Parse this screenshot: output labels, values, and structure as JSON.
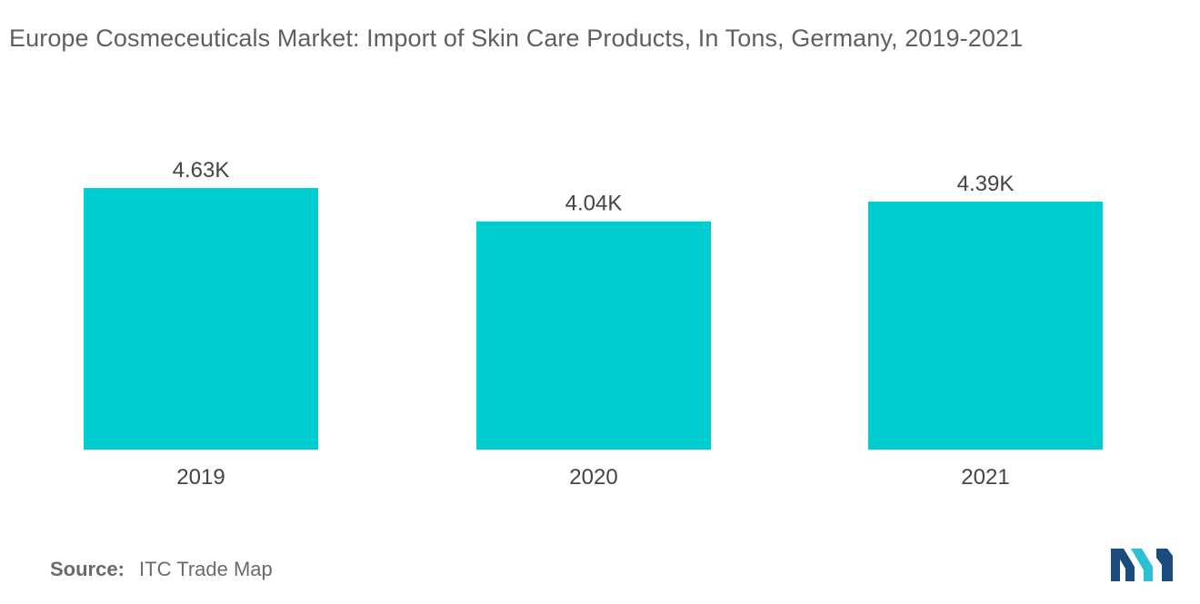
{
  "title": "Europe Cosmeceuticals Market: Import of Skin Care Products, In Tons, Germany, 2019-2021",
  "source_label": "Source:",
  "source_text": "ITC Trade Map",
  "colors": {
    "bar": "#00cdd0",
    "title_text": "#5f5f5f",
    "label_text": "#444444",
    "logo_dark": "#1b4b7c",
    "logo_light": "#2fbfd2"
  },
  "logo_icon": "mordor-intelligence-logo-icon",
  "chart_data": {
    "type": "bar",
    "categories": [
      "2019",
      "2020",
      "2021"
    ],
    "values": [
      4630,
      4040,
      4390
    ],
    "value_labels": [
      "4.63K",
      "4.04K",
      "4.39K"
    ],
    "title": "Europe Cosmeceuticals Market: Import of Skin Care Products, In Tons, Germany, 2019-2021",
    "xlabel": "",
    "ylabel": "",
    "grid": false,
    "y_axis_visible": false
  }
}
